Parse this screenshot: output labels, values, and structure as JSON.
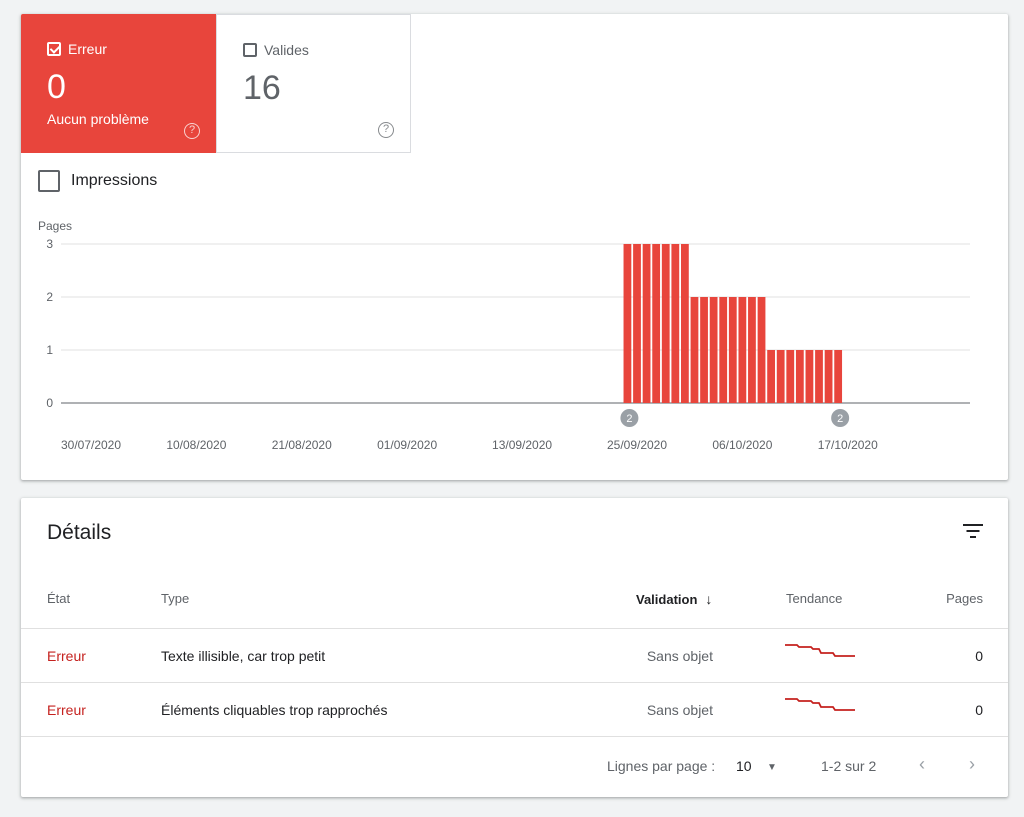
{
  "tiles": {
    "error": {
      "label": "Erreur",
      "value": "0",
      "subtitle": "Aucun problème",
      "checked": true,
      "color": "#e8453c"
    },
    "valid": {
      "label": "Valides",
      "value": "16",
      "checked": false
    }
  },
  "impressions_label": "Impressions",
  "chart_data": {
    "type": "bar",
    "ylabel": "Pages",
    "ylim": [
      0,
      3
    ],
    "yticks": [
      "0",
      "1",
      "2",
      "3"
    ],
    "xticks": [
      "30/07/2020",
      "10/08/2020",
      "21/08/2020",
      "01/09/2020",
      "13/09/2020",
      "25/09/2020",
      "06/10/2020",
      "17/10/2020"
    ],
    "series": [
      {
        "color": "#e8453c",
        "points": [
          {
            "date": "24/09/2020",
            "value": 3
          },
          {
            "date": "25/09/2020",
            "value": 3
          },
          {
            "date": "26/09/2020",
            "value": 3
          },
          {
            "date": "27/09/2020",
            "value": 3
          },
          {
            "date": "28/09/2020",
            "value": 3
          },
          {
            "date": "29/09/2020",
            "value": 3
          },
          {
            "date": "30/09/2020",
            "value": 3
          },
          {
            "date": "01/10/2020",
            "value": 2
          },
          {
            "date": "02/10/2020",
            "value": 2
          },
          {
            "date": "03/10/2020",
            "value": 2
          },
          {
            "date": "04/10/2020",
            "value": 2
          },
          {
            "date": "05/10/2020",
            "value": 2
          },
          {
            "date": "06/10/2020",
            "value": 2
          },
          {
            "date": "07/10/2020",
            "value": 2
          },
          {
            "date": "08/10/2020",
            "value": 2
          },
          {
            "date": "09/10/2020",
            "value": 1
          },
          {
            "date": "10/10/2020",
            "value": 1
          },
          {
            "date": "11/10/2020",
            "value": 1
          },
          {
            "date": "12/10/2020",
            "value": 1
          },
          {
            "date": "13/10/2020",
            "value": 1
          },
          {
            "date": "14/10/2020",
            "value": 1
          },
          {
            "date": "15/10/2020",
            "value": 1
          },
          {
            "date": "16/10/2020",
            "value": 1
          }
        ]
      }
    ],
    "annotations": [
      {
        "date": "24/09/2020",
        "label": "2"
      },
      {
        "date": "16/10/2020",
        "label": "2"
      }
    ],
    "grid": true
  },
  "details": {
    "title": "Détails",
    "columns": {
      "etat": "État",
      "type": "Type",
      "validation": "Validation",
      "tendance": "Tendance",
      "pages": "Pages"
    },
    "rows": [
      {
        "etat": "Erreur",
        "type": "Texte illisible, car trop petit",
        "validation": "Sans objet",
        "pages": "0"
      },
      {
        "etat": "Erreur",
        "type": "Éléments cliquables trop rapprochés",
        "validation": "Sans objet",
        "pages": "0"
      }
    ],
    "trend_color": "#c5221f",
    "footer": {
      "rows_per_page_label": "Lignes par page :",
      "rows_per_page": "10",
      "range": "1-2 sur 2"
    }
  }
}
